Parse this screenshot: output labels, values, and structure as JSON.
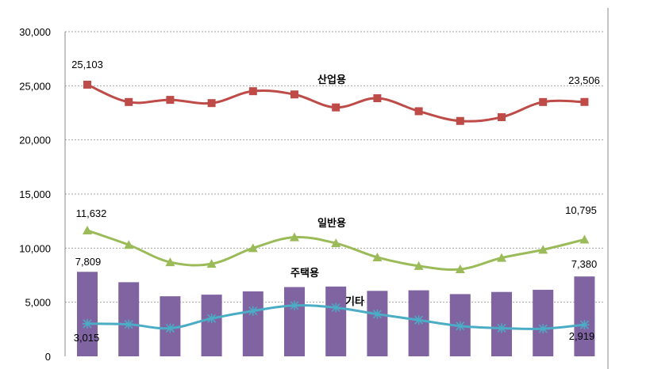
{
  "chart_data": {
    "type": "bar+line",
    "ylim": [
      0,
      30000
    ],
    "yticks": [
      0,
      5000,
      10000,
      15000,
      20000,
      25000,
      30000
    ],
    "ytick_labels": [
      "0",
      "5,000",
      "10,000",
      "15,000",
      "20,000",
      "25,000",
      "30,000"
    ],
    "grid": "horizontal-dashed",
    "point_count": 13,
    "series": [
      {
        "name": "산업용",
        "kind": "line",
        "marker": "square",
        "color": "#BE4B48",
        "values": [
          25103,
          23500,
          23700,
          23400,
          24500,
          24200,
          23000,
          23850,
          22650,
          21750,
          22100,
          23500,
          23506
        ],
        "first_label": "25,103",
        "last_label": "23,506"
      },
      {
        "name": "일반용",
        "kind": "line",
        "marker": "triangle",
        "color": "#9BBB59",
        "values": [
          11632,
          10300,
          8700,
          8550,
          10000,
          11000,
          10450,
          9150,
          8350,
          8050,
          9100,
          9850,
          10795
        ],
        "first_label": "11,632",
        "last_label": "10,795"
      },
      {
        "name": "주택용",
        "kind": "bar",
        "color": "#8064A2",
        "values": [
          7809,
          6850,
          5550,
          5700,
          6000,
          6400,
          6450,
          6050,
          6100,
          5750,
          5950,
          6150,
          7380
        ],
        "first_label": "7,809",
        "last_label": "7,380"
      },
      {
        "name": "기타",
        "kind": "line",
        "marker": "star",
        "color": "#4BACC6",
        "values": [
          3015,
          2950,
          2600,
          3500,
          4200,
          4700,
          4500,
          3900,
          3350,
          2800,
          2600,
          2550,
          2919
        ],
        "first_label": "3,015",
        "last_label": "2,919"
      }
    ]
  }
}
